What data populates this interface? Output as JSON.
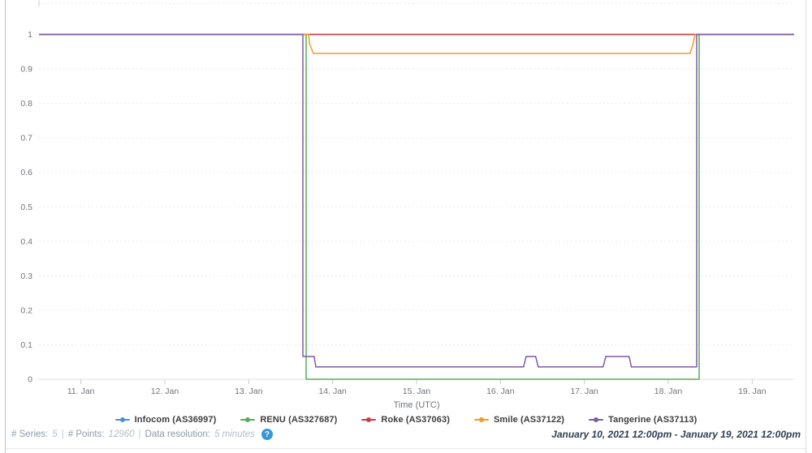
{
  "ui": {
    "help_glyph": "?",
    "help_color": "#3598db",
    "date_range": "January 10, 2021 12:00pm - January 19, 2021 12:00pm",
    "status_bar": {
      "series_label": "# Series:",
      "series_value": "5",
      "points_label": "# Points:",
      "points_value": "12960",
      "resolution_label": "Data resolution:",
      "resolution_value": "5 minutes",
      "separator": "|"
    }
  },
  "chart_data": {
    "type": "line",
    "title": "",
    "xlabel": "Time (UTC)",
    "ylabel": "",
    "x_start": "January 10, 2021 12:00pm UTC",
    "x_end": "January 19, 2021 12:00pm UTC",
    "x_range_days": [
      0,
      9
    ],
    "ylim": [
      0,
      1
    ],
    "grid": "dashed horizontal gridlines every 0.1",
    "legend_position": "bottom",
    "yticks": [
      {
        "v": 0,
        "label": "0"
      },
      {
        "v": 0.1,
        "label": "0.1"
      },
      {
        "v": 0.2,
        "label": "0.2"
      },
      {
        "v": 0.3,
        "label": "0.3"
      },
      {
        "v": 0.4,
        "label": "0.4"
      },
      {
        "v": 0.5,
        "label": "0.5"
      },
      {
        "v": 0.6,
        "label": "0.6"
      },
      {
        "v": 0.7,
        "label": "0.7"
      },
      {
        "v": 0.8,
        "label": "0.8"
      },
      {
        "v": 0.9,
        "label": "0.9"
      },
      {
        "v": 1,
        "label": "1"
      }
    ],
    "xticks": [
      {
        "day": 0.5,
        "label": "11. Jan"
      },
      {
        "day": 1.5,
        "label": "12. Jan"
      },
      {
        "day": 2.5,
        "label": "13. Jan"
      },
      {
        "day": 3.5,
        "label": "14. Jan"
      },
      {
        "day": 4.5,
        "label": "15. Jan"
      },
      {
        "day": 5.5,
        "label": "16. Jan"
      },
      {
        "day": 6.5,
        "label": "17. Jan"
      },
      {
        "day": 7.5,
        "label": "18. Jan"
      },
      {
        "day": 8.5,
        "label": "19. Jan"
      }
    ],
    "series": [
      {
        "name": "Infocom (AS36997)",
        "color": "#4a90d2",
        "points": [
          [
            0,
            1
          ],
          [
            9,
            1
          ]
        ]
      },
      {
        "name": "RENU (AS327687)",
        "color": "#55ad55",
        "points": [
          [
            0,
            1
          ],
          [
            3.184,
            1
          ],
          [
            3.184,
            0
          ],
          [
            7.868,
            0
          ],
          [
            7.868,
            1
          ],
          [
            9,
            1
          ]
        ]
      },
      {
        "name": "Roke (AS37063)",
        "color": "#cf3a41",
        "points": [
          [
            0,
            1
          ],
          [
            9,
            1
          ]
        ]
      },
      {
        "name": "Smile (AS37122)",
        "color": "#f29a29",
        "points": [
          [
            0,
            1
          ],
          [
            3.213,
            1
          ],
          [
            3.225,
            0.972
          ],
          [
            3.27,
            0.945
          ],
          [
            7.76,
            0.945
          ],
          [
            7.79,
            0.968
          ],
          [
            7.82,
            1
          ],
          [
            9,
            1
          ]
        ]
      },
      {
        "name": "Tangerine (AS37113)",
        "color": "#7d5ba6",
        "points": [
          [
            0,
            1
          ],
          [
            3.145,
            1
          ],
          [
            3.145,
            0.066
          ],
          [
            3.28,
            0.066
          ],
          [
            3.3,
            0.036
          ],
          [
            5.775,
            0.036
          ],
          [
            5.806,
            0.066
          ],
          [
            5.92,
            0.066
          ],
          [
            5.95,
            0.036
          ],
          [
            6.724,
            0.036
          ],
          [
            6.755,
            0.066
          ],
          [
            7.034,
            0.066
          ],
          [
            7.06,
            0.036
          ],
          [
            7.839,
            0.036
          ],
          [
            7.839,
            1
          ],
          [
            9,
            1
          ]
        ]
      }
    ]
  }
}
